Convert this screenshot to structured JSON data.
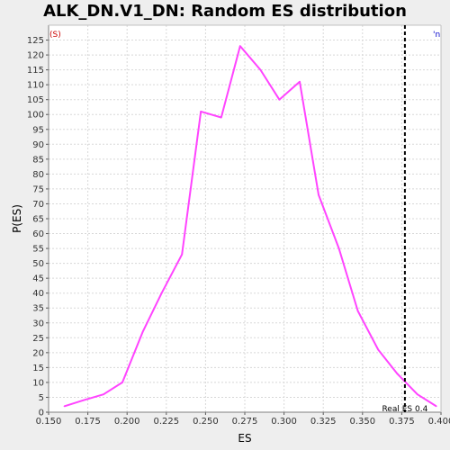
{
  "chart_data": {
    "type": "line",
    "title": "ALK_DN.V1_DN: Random ES distribution",
    "xlabel": "ES",
    "ylabel": "P(ES)",
    "xlim": [
      0.15,
      0.4
    ],
    "ylim": [
      0,
      130
    ],
    "x_ticks": [
      "0.150",
      "0.175",
      "0.200",
      "0.225",
      "0.250",
      "0.275",
      "0.300",
      "0.325",
      "0.350",
      "0.375",
      "0.400"
    ],
    "y_ticks": [
      0,
      5,
      10,
      15,
      20,
      25,
      30,
      35,
      40,
      45,
      50,
      55,
      60,
      65,
      70,
      75,
      80,
      85,
      90,
      95,
      100,
      105,
      110,
      115,
      120,
      125
    ],
    "grid": true,
    "series": [
      {
        "color": "#ff44ff",
        "x": [
          0.16,
          0.172,
          0.185,
          0.197,
          0.21,
          0.222,
          0.235,
          0.247,
          0.26,
          0.272,
          0.285,
          0.297,
          0.31,
          0.322,
          0.335,
          0.347,
          0.36,
          0.372,
          0.385,
          0.397
        ],
        "y": [
          2,
          4,
          6,
          10,
          27,
          40,
          53,
          101,
          99,
          123,
          115,
          105,
          111,
          73,
          55,
          34,
          21,
          13,
          6,
          2
        ]
      }
    ],
    "reference_line": {
      "x": 0.377,
      "label": "Real ES 0.4",
      "color": "#000000"
    },
    "corner_left_text": "(S)",
    "corner_left_color": "#cc0000",
    "corner_right_text": "'n",
    "corner_right_color": "#0000cc"
  }
}
